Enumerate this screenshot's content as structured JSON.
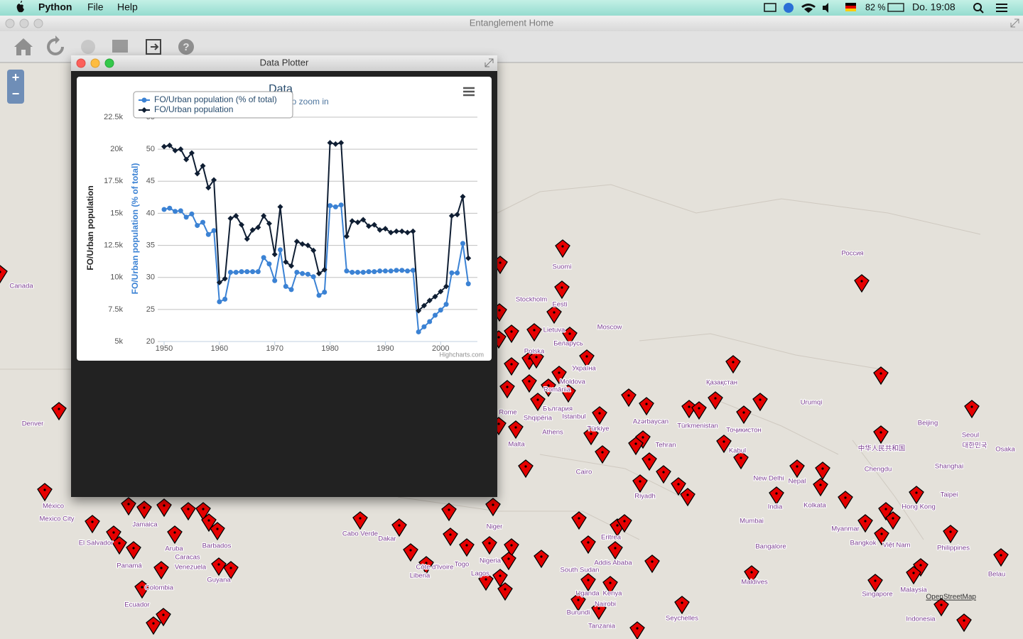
{
  "menubar": {
    "app": "Python",
    "menus": [
      "File",
      "Help"
    ],
    "battery": "82 %",
    "clock": "Do. 19:08"
  },
  "window": {
    "title": "Entanglement Home"
  },
  "plotter": {
    "title": "Data Plotter"
  },
  "map": {
    "zoom_in": "+",
    "zoom_out": "−",
    "attribution": "OpenStreetMap",
    "labels": [
      "Canada",
      "Denver",
      "México",
      "Mexico City",
      "El Salvador",
      "Panamá",
      "Jamaica",
      "Aruba",
      "Barbados",
      "Caracas",
      "Venezuela",
      "Colombia",
      "Ecuador",
      "Guyana",
      "Suomi",
      "Stockholm",
      "Eesti",
      "Россия",
      "Moscow",
      "Lietuva",
      "Polska",
      "Беларусь",
      "Україна",
      "Moldova",
      "România",
      "България",
      "Istanbul",
      "Shqipëria",
      "Rome",
      "Athens",
      "Malta",
      "Türkiye",
      "Azərbaycan",
      "Tehran",
      "Türkmenistan",
      "Тоҷикистон",
      "Kabul",
      "Қазақстан",
      "Urumqi",
      "Beijing",
      "Seoul",
      "대한민국",
      "Osaka",
      "中华人民共和国",
      "Chengdu",
      "Shanghai",
      "Taipei",
      "Hong Kong",
      "New Delhi",
      "Nepal",
      "India",
      "Kolkata",
      "Mumbai",
      "Bangalore",
      "Myanmar",
      "Bangkok",
      "Việt Nam",
      "Philippines",
      "Belau",
      "Malaysia",
      "Singapore",
      "Indonesia",
      "Maldives",
      "Seychelles",
      "Cairo",
      "Riyadh",
      "Eritrea",
      "Addis Ababa",
      "South Sudan",
      "Uganda",
      "Kenya",
      "Nairobi",
      "Burundi",
      "Tanzania",
      "Niger",
      "Nigeria",
      "Lagos",
      "Togo",
      "Côte d'Ivoire",
      "Liberia",
      "Dakar",
      "Cabo Verde"
    ]
  },
  "chart_data": {
    "type": "line",
    "title": "Data",
    "subtitle": "Click and drag to zoom in",
    "credits": "Highcharts.com",
    "ylabel": "FO/Urban population",
    "y2label": "FO/Urban population (% of total)",
    "x": [
      1950,
      1951,
      1952,
      1953,
      1954,
      1955,
      1956,
      1957,
      1958,
      1959,
      1960,
      1961,
      1962,
      1963,
      1964,
      1965,
      1966,
      1967,
      1968,
      1969,
      1970,
      1971,
      1972,
      1973,
      1974,
      1975,
      1976,
      1977,
      1978,
      1979,
      1980,
      1981,
      1982,
      1983,
      1984,
      1985,
      1986,
      1987,
      1988,
      1989,
      1990,
      1991,
      1992,
      1993,
      1994,
      1995,
      1996,
      1997,
      1998,
      1999,
      2000,
      2001,
      2002,
      2003,
      2004,
      2005
    ],
    "xlim": [
      1950,
      2006
    ],
    "xticks": [
      1950,
      1960,
      1970,
      1980,
      1990,
      2000
    ],
    "ylim": [
      5000,
      22500
    ],
    "yticks": [
      {
        "value": 5000,
        "label": "5k"
      },
      {
        "value": 7500,
        "label": "7.5k"
      },
      {
        "value": 10000,
        "label": "10k"
      },
      {
        "value": 12500,
        "label": "12.5k"
      },
      {
        "value": 15000,
        "label": "15k"
      },
      {
        "value": 17500,
        "label": "17.5k"
      },
      {
        "value": 20000,
        "label": "20k"
      },
      {
        "value": 22500,
        "label": "22.5k"
      }
    ],
    "y2lim": [
      20,
      55
    ],
    "y2ticks": [
      20,
      25,
      30,
      35,
      40,
      45,
      50,
      55
    ],
    "grid": true,
    "series": [
      {
        "name": "FO/Urban population (% of total)",
        "color": "#3b82d4",
        "axis": "y2",
        "marker": "circle",
        "values": [
          40.6,
          40.8,
          40.3,
          40.4,
          39.4,
          39.9,
          38.1,
          38.6,
          36.7,
          37.3,
          26.2,
          26.6,
          30.8,
          30.8,
          30.9,
          30.9,
          30.9,
          30.9,
          33.1,
          32.1,
          29.5,
          34.3,
          28.6,
          28.1,
          30.8,
          30.6,
          30.5,
          30.1,
          27.2,
          27.7,
          41.2,
          41.0,
          41.3,
          31.0,
          30.8,
          30.8,
          30.8,
          30.9,
          30.9,
          31.0,
          31.0,
          31.0,
          31.1,
          31.1,
          31.0,
          31.1,
          21.5,
          22.3,
          23.1,
          24.1,
          24.9,
          25.8,
          30.7,
          30.7,
          35.3,
          29.0
        ]
      },
      {
        "name": "FO/Urban population",
        "color": "#0f1e33",
        "marker": "diamond",
        "values": [
          20200,
          20300,
          19900,
          20000,
          19200,
          19700,
          18100,
          18700,
          17000,
          17600,
          9600,
          9900,
          14600,
          14800,
          14100,
          13000,
          13700,
          13900,
          14800,
          14200,
          11800,
          15500,
          11200,
          10900,
          12800,
          12600,
          12500,
          12100,
          10300,
          10600,
          20500,
          20400,
          20500,
          13200,
          14400,
          14300,
          14500,
          14000,
          14100,
          13700,
          13800,
          13500,
          13600,
          13600,
          13500,
          13600,
          7400,
          7800,
          8200,
          8500,
          8900,
          9300,
          14800,
          14900,
          16300,
          11500
        ]
      }
    ]
  }
}
